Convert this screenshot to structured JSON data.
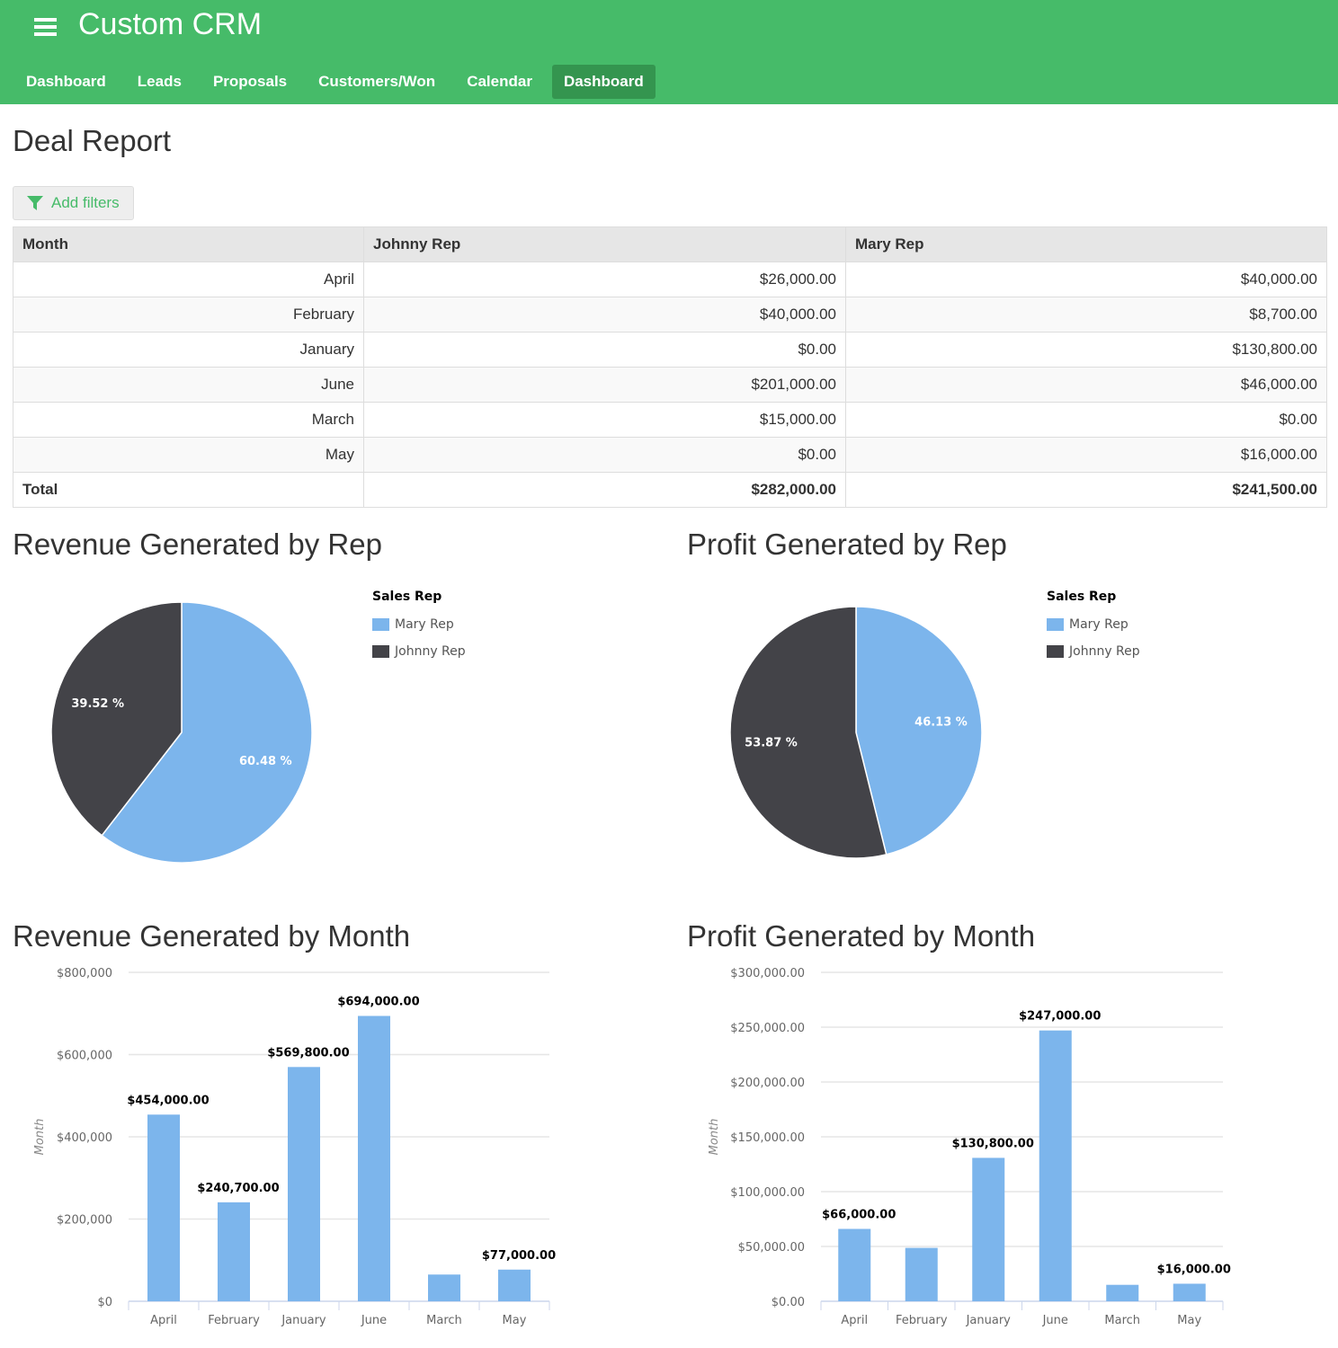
{
  "app": {
    "title": "Custom CRM",
    "nav": [
      "Dashboard",
      "Leads",
      "Proposals",
      "Customers/Won",
      "Calendar",
      "Dashboard"
    ],
    "active_nav": 5
  },
  "page": {
    "title": "Deal Report",
    "filter_label": "Add filters"
  },
  "table": {
    "headers": [
      "Month",
      "Johnny Rep",
      "Mary Rep"
    ],
    "rows": [
      [
        "April",
        "$26,000.00",
        "$40,000.00"
      ],
      [
        "February",
        "$40,000.00",
        "$8,700.00"
      ],
      [
        "January",
        "$0.00",
        "$130,800.00"
      ],
      [
        "June",
        "$201,000.00",
        "$46,000.00"
      ],
      [
        "March",
        "$15,000.00",
        "$0.00"
      ],
      [
        "May",
        "$0.00",
        "$16,000.00"
      ]
    ],
    "total": [
      "Total",
      "$282,000.00",
      "$241,500.00"
    ]
  },
  "colors": {
    "green": "#46bb69",
    "mary": "#7cb5ec",
    "johnny": "#434348"
  },
  "chart_data": [
    {
      "type": "pie",
      "title": "Revenue Generated by Rep",
      "legend_title": "Sales Rep",
      "legend": [
        "Mary Rep",
        "Johnny Rep"
      ],
      "values": [
        60.48,
        39.52
      ],
      "labels": [
        "60.48 %",
        "39.52 %"
      ]
    },
    {
      "type": "pie",
      "title": "Profit Generated by Rep",
      "legend_title": "Sales Rep",
      "legend": [
        "Mary Rep",
        "Johnny Rep"
      ],
      "values": [
        46.13,
        53.87
      ],
      "labels": [
        "46.13 %",
        "53.87 %"
      ]
    },
    {
      "type": "bar",
      "title": "Revenue Generated by Month",
      "ylabel": "Month",
      "ylim": [
        0,
        800000
      ],
      "yticks": [
        "$0",
        "$200,000",
        "$400,000",
        "$600,000",
        "$800,000"
      ],
      "categories": [
        "April",
        "February",
        "January",
        "June",
        "March",
        "May"
      ],
      "values": [
        454000,
        240700,
        569800,
        694000,
        65000,
        77000
      ],
      "labels": [
        "$454,000.00",
        "$240,700.00",
        "$569,800.00",
        "$694,000.00",
        null,
        "$77,000.00"
      ]
    },
    {
      "type": "bar",
      "title": "Profit Generated by Month",
      "ylabel": "Month",
      "ylim": [
        0,
        300000
      ],
      "yticks": [
        "$0.00",
        "$50,000.00",
        "$100,000.00",
        "$150,000.00",
        "$200,000.00",
        "$250,000.00",
        "$300,000.00"
      ],
      "categories": [
        "April",
        "February",
        "January",
        "June",
        "March",
        "May"
      ],
      "values": [
        66000,
        48700,
        130800,
        247000,
        15000,
        16000
      ],
      "labels": [
        "$66,000.00",
        null,
        "$130,800.00",
        "$247,000.00",
        null,
        "$16,000.00"
      ]
    }
  ]
}
